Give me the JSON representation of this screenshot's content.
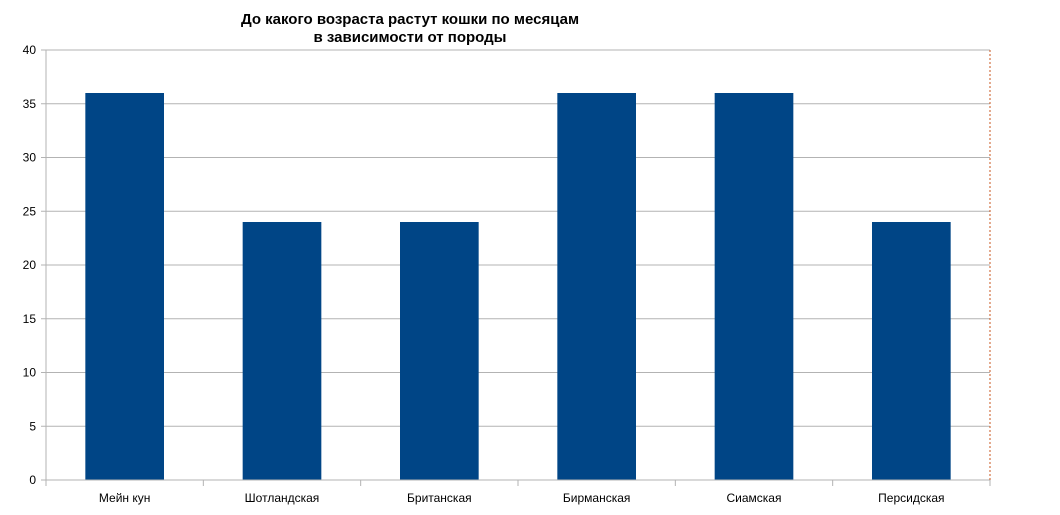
{
  "chart_data": {
    "type": "bar",
    "title_lines": [
      "До какого возраста растут кошки  по месяцам",
      "в зависимости от породы"
    ],
    "categories": [
      "Мейн кун",
      "Шотландская",
      "Британская",
      "Бирманская",
      "Сиамская",
      "Персидская"
    ],
    "values": [
      36,
      24,
      24,
      36,
      36,
      24
    ],
    "ylim": [
      0,
      40
    ],
    "ytick_step": 5,
    "grid": true,
    "legend": "none",
    "bar_color": "#004586",
    "grid_color": "#b3b3b3",
    "right_border_color": "#c8551e"
  }
}
